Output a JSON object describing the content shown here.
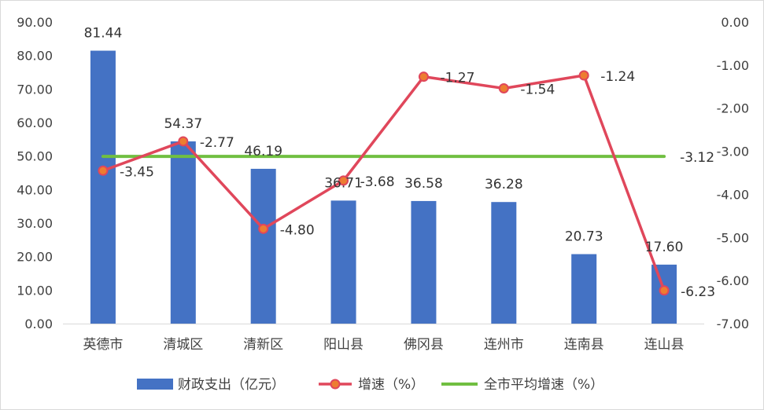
{
  "chart_data": {
    "type": "bar",
    "categories": [
      "英德市",
      "清城区",
      "清新区",
      "阳山县",
      "佛冈县",
      "连州市",
      "连南县",
      "连山县"
    ],
    "series": [
      {
        "name": "财政支出（亿元）",
        "type": "bar",
        "axis": "left",
        "color": "#4472C4",
        "values": [
          81.44,
          54.37,
          46.19,
          36.71,
          36.58,
          36.28,
          20.73,
          17.6
        ],
        "labels": [
          "81.44",
          "54.37",
          "46.19",
          "36.71",
          "36.58",
          "36.28",
          "20.73",
          "17.60"
        ]
      },
      {
        "name": "增速（%）",
        "type": "line",
        "axis": "right",
        "color": "#E0475B",
        "marker_fill": "#ED7D31",
        "values": [
          -3.45,
          -2.77,
          -4.8,
          -3.68,
          -1.27,
          -1.54,
          -1.24,
          -6.23
        ],
        "labels": [
          "-3.45",
          "-2.77",
          "-4.80",
          "-3.68",
          "-1.27",
          "-1.54",
          "-1.24",
          "-6.23"
        ]
      },
      {
        "name": "全市平均增速（%）",
        "type": "line",
        "axis": "right",
        "color": "#70BF41",
        "values": [
          -3.12,
          -3.12,
          -3.12,
          -3.12,
          -3.12,
          -3.12,
          -3.12,
          -3.12
        ],
        "labels": [
          "-3.12"
        ]
      }
    ],
    "y_left": {
      "min": 0,
      "max": 90,
      "step": 10,
      "ticks": [
        "0.00",
        "10.00",
        "20.00",
        "30.00",
        "40.00",
        "50.00",
        "60.00",
        "70.00",
        "80.00",
        "90.00"
      ]
    },
    "y_right": {
      "min": -7,
      "max": 0,
      "step": 1,
      "ticks": [
        "-7.00",
        "-6.00",
        "-5.00",
        "-4.00",
        "-3.00",
        "-2.00",
        "-1.00",
        "0.00"
      ]
    },
    "grid": false,
    "legend_position": "bottom"
  }
}
